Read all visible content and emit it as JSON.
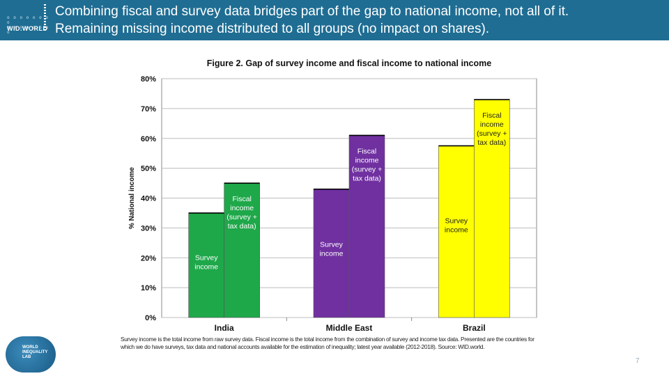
{
  "header": {
    "logo_text": "WID.WORLD",
    "title_line1": "Combining fiscal and survey data bridges part of the gap to national income, not all of it.",
    "title_line2": "Remaining missing income distributed to all groups (no impact on shares)."
  },
  "chart_data": {
    "type": "bar",
    "title": "Figure 2. Gap of survey income and fiscal income to national income",
    "ylabel": "% National income",
    "xlabel": "",
    "ylim": [
      0,
      80
    ],
    "yticks": [
      0,
      10,
      20,
      30,
      40,
      50,
      60,
      70,
      80
    ],
    "ytick_labels": [
      "0%",
      "10%",
      "20%",
      "30%",
      "40%",
      "50%",
      "60%",
      "70%",
      "80%"
    ],
    "grid": true,
    "categories": [
      "India",
      "Middle East",
      "Brazil"
    ],
    "series": [
      {
        "label_lines": [
          "Survey",
          "income"
        ],
        "values": [
          35,
          43,
          57.5
        ],
        "colors": [
          "#1ea84a",
          "#7030a0",
          "#ffff00"
        ]
      },
      {
        "label_lines": [
          "Fiscal",
          "income",
          "(survey +",
          "tax data)"
        ],
        "values": [
          45,
          61,
          73
        ],
        "colors": [
          "#1ea84a",
          "#7030a0",
          "#ffff00"
        ]
      }
    ]
  },
  "footnote": "Survey income is the total income from raw survey data. Fiscal income is the total income from the combination of survey and income tax data. Presented are the countries for which we do have surveys, tax data and national accounts available for the estimation of inequality; latest year available (2012-2018). Source: WID.world.",
  "wil_logo": {
    "lines": [
      "WORLD",
      "INEQUALITY",
      "LAB"
    ]
  },
  "page_number": "7",
  "colors": {
    "header_bg": "#1f6d93",
    "india": "#1ea84a",
    "middle_east": "#7030a0",
    "brazil": "#ffff00"
  }
}
